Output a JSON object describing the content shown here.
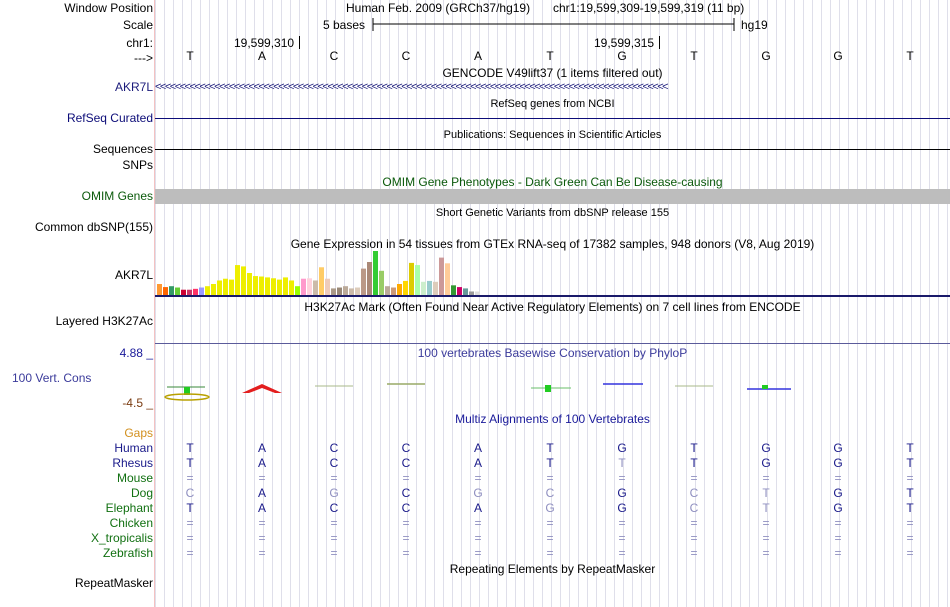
{
  "ruler": {
    "window_position_label": "Window Position",
    "scale_label": "Scale",
    "chrom_label": "chr1:",
    "arrow_label": "--->",
    "assembly_text": "Human Feb. 2009 (GRCh37/hg19)",
    "position_text": "chr1:19,599,309-19,599,319 (11 bp)",
    "scale_text": "5 bases",
    "db_text": "hg19",
    "coord_left": "19,599,310",
    "coord_right": "19,599,315",
    "bases": [
      "T",
      "A",
      "C",
      "C",
      "A",
      "T",
      "G",
      "T",
      "G",
      "G",
      "T"
    ]
  },
  "tracks": {
    "gencode": {
      "header": "GENCODE V49lift37 (1 items filtered out)",
      "label": "AKR7L",
      "color": "#1a1a7a",
      "strand": "<<<<<<<<<<<<<<<<<<<<<<<<<<<<<<<<<<<<<<<<<<<<<<<<<<<<<<<<<<<<<<<<<<<<<<<<<<<<<<<<<<<<<<<<<<<<<<<<<<<<<<<<"
    },
    "refseq": {
      "header": "RefSeq genes from NCBI",
      "label": "RefSeq Curated",
      "color": "#0c0c78"
    },
    "publications": {
      "header": "Publications: Sequences in Scientific Articles",
      "label": "Sequences"
    },
    "snps_label": "SNPs",
    "omim": {
      "header": "OMIM Gene Phenotypes - Dark Green Can Be Disease-causing",
      "label": "OMIM Genes",
      "color": "#0b5a0b"
    },
    "dbsnp": {
      "header": "Short Genetic Variants from dbSNP release 155",
      "label": "Common dbSNP(155)"
    },
    "gtex": {
      "header": "Gene Expression in 54 tissues from GTEx RNA-seq of 17382 samples, 948 donors (V8, Aug 2019)",
      "label": "AKR7L",
      "colors": [
        "#ff9933",
        "#ff6600",
        "#339966",
        "#66cc33",
        "#cc0033",
        "#cc3366",
        "#ff3366",
        "#9999ff",
        "#eeee00",
        "#eeee00",
        "#eeee00",
        "#eeee00",
        "#eeee00",
        "#eeee00",
        "#eeee00",
        "#eeee00",
        "#eeee00",
        "#eeee00",
        "#eeee00",
        "#eeee00",
        "#eeee00",
        "#eeee00",
        "#eeee00",
        "#99ff00",
        "#ff99cc",
        "#ffd1dc",
        "#ccbbaa",
        "#ffcc66",
        "#eeccbb",
        "#aa9988",
        "#998877",
        "#bbaa99",
        "#ccbbaa",
        "#ddccbb",
        "#bb9988",
        "#aa8877",
        "#33cc33",
        "#99cc66",
        "#bbaa99",
        "#cc9977",
        "#ffaa00",
        "#ffd700",
        "#ddcc00",
        "#aaffaa",
        "#cceecc",
        "#99cccc",
        "#ddccbb",
        "#cc9999",
        "#ffcc99",
        "#339933",
        "#cc0066",
        "#669999",
        "#999999",
        "#dddddd"
      ],
      "values": [
        0.25,
        0.18,
        0.2,
        0.17,
        0.12,
        0.12,
        0.14,
        0.17,
        0.2,
        0.25,
        0.33,
        0.37,
        0.35,
        0.68,
        0.65,
        0.5,
        0.43,
        0.42,
        0.4,
        0.38,
        0.35,
        0.4,
        0.33,
        0.2,
        0.37,
        0.38,
        0.33,
        0.63,
        0.37,
        0.15,
        0.17,
        0.2,
        0.15,
        0.17,
        0.6,
        0.75,
        1.0,
        0.55,
        0.2,
        0.17,
        0.25,
        0.32,
        0.73,
        0.68,
        0.3,
        0.32,
        0.3,
        0.85,
        0.72,
        0.22,
        0.18,
        0.15,
        0.08,
        0.08
      ]
    },
    "h3k27ac": {
      "header": "H3K27Ac Mark (Often Found Near Active Regulatory Elements) on 7 cell lines from ENCODE",
      "label": "Layered H3K27Ac"
    },
    "conservation": {
      "header": "100 vertebrates Basewise Conservation by PhyloP",
      "label": "100 Vert. Cons",
      "max": "4.88 _",
      "min": "-4.5 _",
      "color": "#3b3b9b",
      "max_color": "#1a1a9a",
      "min_color": "#7a3b10"
    },
    "multiz": {
      "header": "Multiz Alignments of 100 Vertebrates",
      "header_color": "#1a1a9a",
      "gaps_label": "Gaps",
      "gaps_color": "#d2901e",
      "species": [
        {
          "name": "Human",
          "color": "#1a1a8a",
          "row": [
            "T",
            "A",
            "C",
            "C",
            "A",
            "T",
            "G",
            "T",
            "G",
            "G",
            "T"
          ],
          "dim": [
            0,
            0,
            0,
            0,
            0,
            0,
            0,
            0,
            0,
            0,
            0
          ]
        },
        {
          "name": "Rhesus",
          "color": "#1a1a8a",
          "row": [
            "T",
            "A",
            "C",
            "C",
            "A",
            "T",
            "T",
            "T",
            "G",
            "G",
            "T"
          ],
          "dim": [
            0,
            0,
            0,
            0,
            0,
            0,
            1,
            0,
            0,
            0,
            0
          ]
        },
        {
          "name": "Mouse",
          "color": "#117011",
          "row": [
            "=",
            "=",
            "=",
            "=",
            "=",
            "=",
            "=",
            "=",
            "=",
            "=",
            "="
          ],
          "dim": [
            1,
            1,
            1,
            1,
            1,
            1,
            1,
            1,
            1,
            1,
            1
          ]
        },
        {
          "name": "Dog",
          "color": "#117011",
          "row": [
            "C",
            "A",
            "G",
            "C",
            "G",
            "C",
            "G",
            "C",
            "T",
            "G",
            "T"
          ],
          "dim": [
            1,
            0,
            1,
            0,
            1,
            1,
            0,
            1,
            1,
            0,
            0
          ]
        },
        {
          "name": "Elephant",
          "color": "#117011",
          "row": [
            "T",
            "A",
            "C",
            "C",
            "A",
            "G",
            "G",
            "C",
            "T",
            "G",
            "T"
          ],
          "dim": [
            0,
            0,
            0,
            0,
            0,
            1,
            0,
            1,
            1,
            0,
            0
          ]
        },
        {
          "name": "Chicken",
          "color": "#117011",
          "row": [
            "=",
            "=",
            "=",
            "=",
            "=",
            "=",
            "=",
            "=",
            "=",
            "=",
            "="
          ],
          "dim": [
            1,
            1,
            1,
            1,
            1,
            1,
            1,
            1,
            1,
            1,
            1
          ]
        },
        {
          "name": "X_tropicalis",
          "color": "#117011",
          "row": [
            "=",
            "=",
            "=",
            "=",
            "=",
            "=",
            "=",
            "=",
            "=",
            "=",
            "="
          ],
          "dim": [
            1,
            1,
            1,
            1,
            1,
            1,
            1,
            1,
            1,
            1,
            1
          ]
        },
        {
          "name": "Zebrafish",
          "color": "#117011",
          "row": [
            "=",
            "=",
            "=",
            "=",
            "=",
            "=",
            "=",
            "=",
            "=",
            "=",
            "="
          ],
          "dim": [
            1,
            1,
            1,
            1,
            1,
            1,
            1,
            1,
            1,
            1,
            1
          ]
        }
      ]
    },
    "repeatmasker": {
      "header": "Repeating Elements by RepeatMasker",
      "label": "RepeatMasker"
    }
  }
}
